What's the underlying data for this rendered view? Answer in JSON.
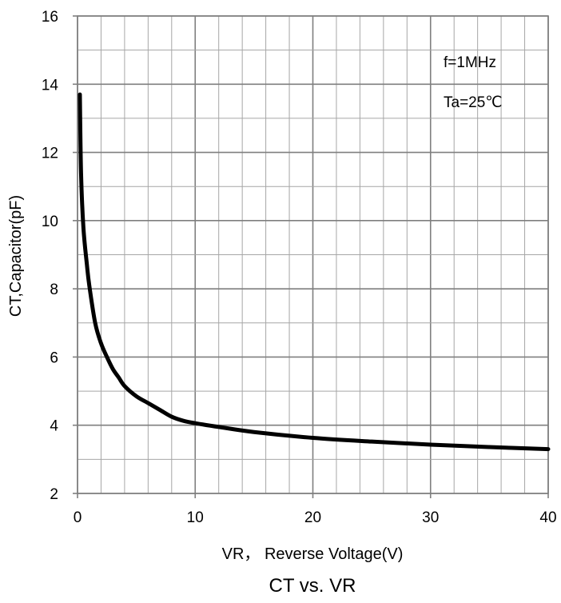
{
  "chart_data": {
    "type": "line",
    "title": "CT  vs. VR",
    "xlabel": "VR， Reverse Voltage(V)",
    "ylabel": "CT,Capacitor(pF)",
    "xlim": [
      0,
      40
    ],
    "ylim": [
      2,
      16
    ],
    "xticks": [
      0,
      10,
      20,
      30,
      40
    ],
    "yticks": [
      2,
      4,
      6,
      8,
      10,
      12,
      14,
      16
    ],
    "x_minor_step": 2,
    "y_minor_step": 1,
    "grid": true,
    "annotations": [
      "f=1MHz",
      "Ta=25℃"
    ],
    "series": [
      {
        "color": "#000000",
        "x": [
          0.2,
          0.3,
          0.5,
          0.8,
          1,
          1.5,
          2,
          2.5,
          3,
          3.5,
          4,
          5,
          6,
          7,
          8,
          9,
          10,
          12,
          15,
          20,
          25,
          30,
          35,
          40
        ],
        "y": [
          13.7,
          11.4,
          9.8,
          8.7,
          8.1,
          7.0,
          6.4,
          6.0,
          5.65,
          5.4,
          5.15,
          4.85,
          4.65,
          4.45,
          4.25,
          4.13,
          4.06,
          3.95,
          3.8,
          3.63,
          3.52,
          3.43,
          3.36,
          3.3
        ]
      }
    ]
  }
}
